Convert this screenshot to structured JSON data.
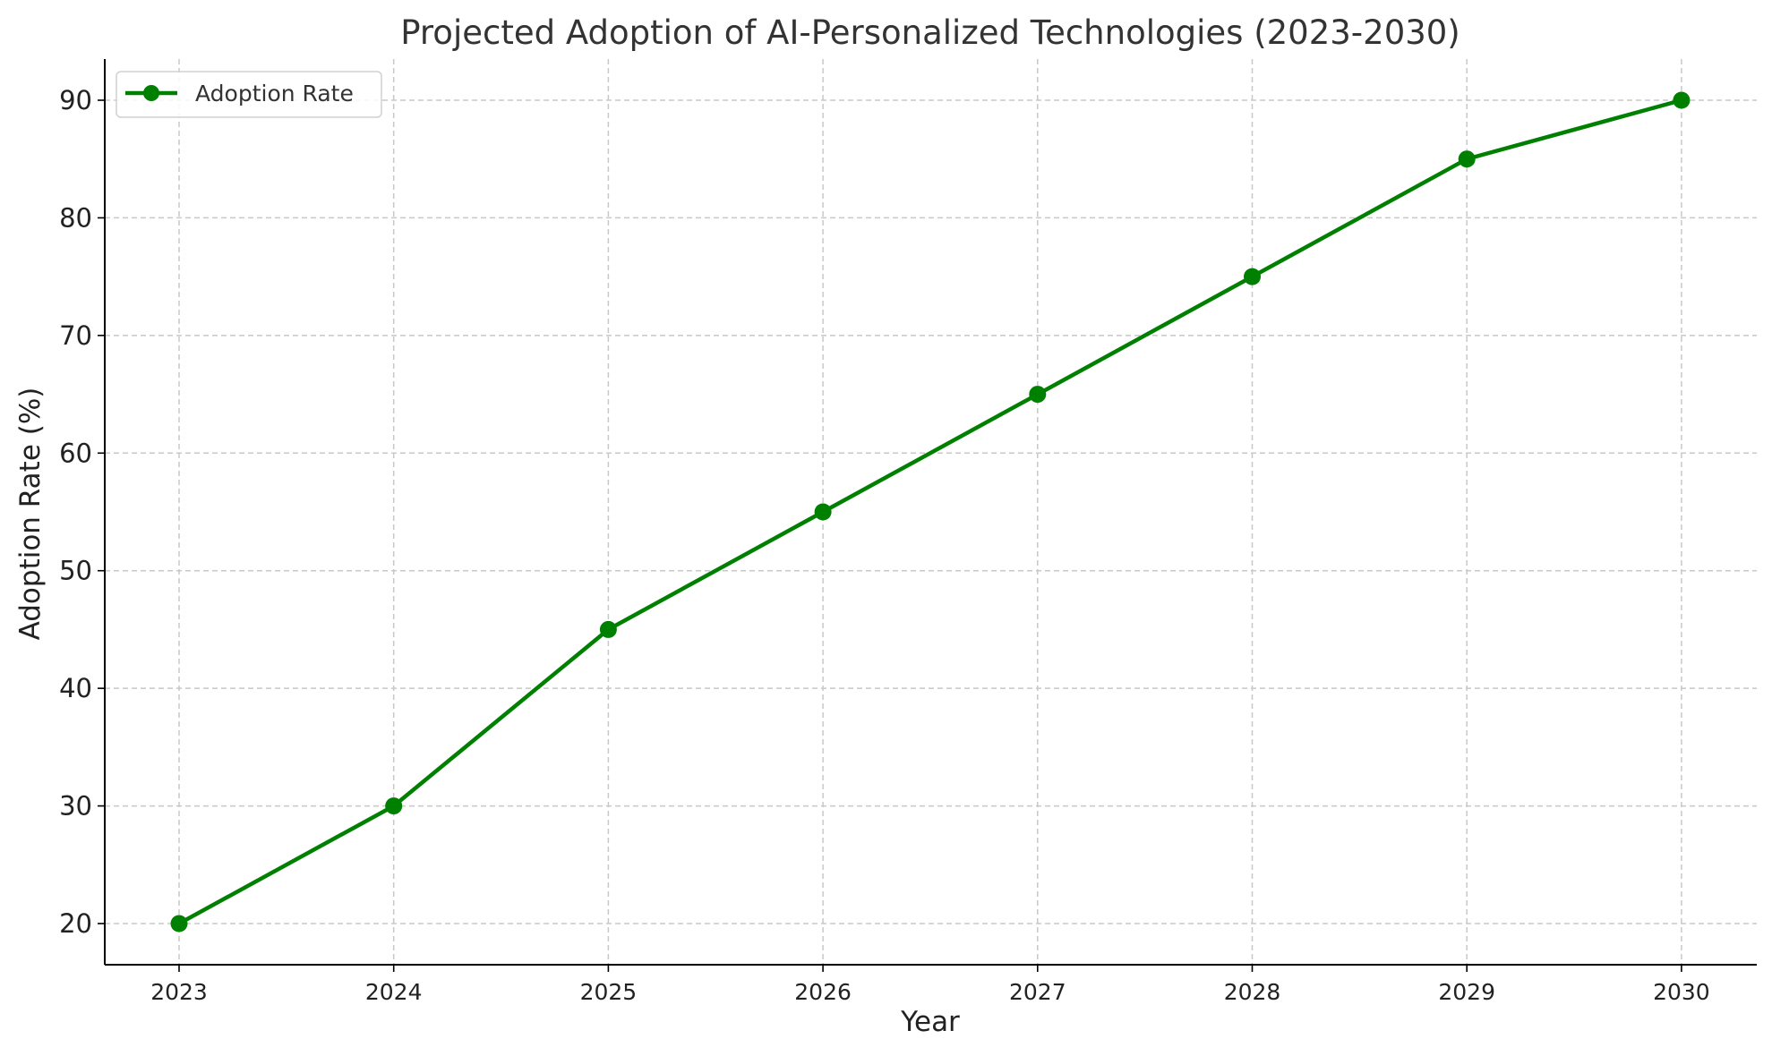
{
  "chart_data": {
    "type": "line",
    "title": "Projected Adoption of AI-Personalized Technologies (2023-2030)",
    "xlabel": "Year",
    "ylabel": "Adoption Rate (%)",
    "categories": [
      "2023",
      "2024",
      "2025",
      "2026",
      "2027",
      "2028",
      "2029",
      "2030"
    ],
    "yticks": [
      20,
      30,
      40,
      50,
      60,
      70,
      80,
      90
    ],
    "ylim": [
      16.5,
      93.5
    ],
    "grid": true,
    "legend_position": "upper-left",
    "series": [
      {
        "name": "Adoption Rate",
        "color": "#008000",
        "marker": "circle",
        "values": [
          20,
          30,
          45,
          55,
          65,
          75,
          85,
          90
        ]
      }
    ]
  }
}
